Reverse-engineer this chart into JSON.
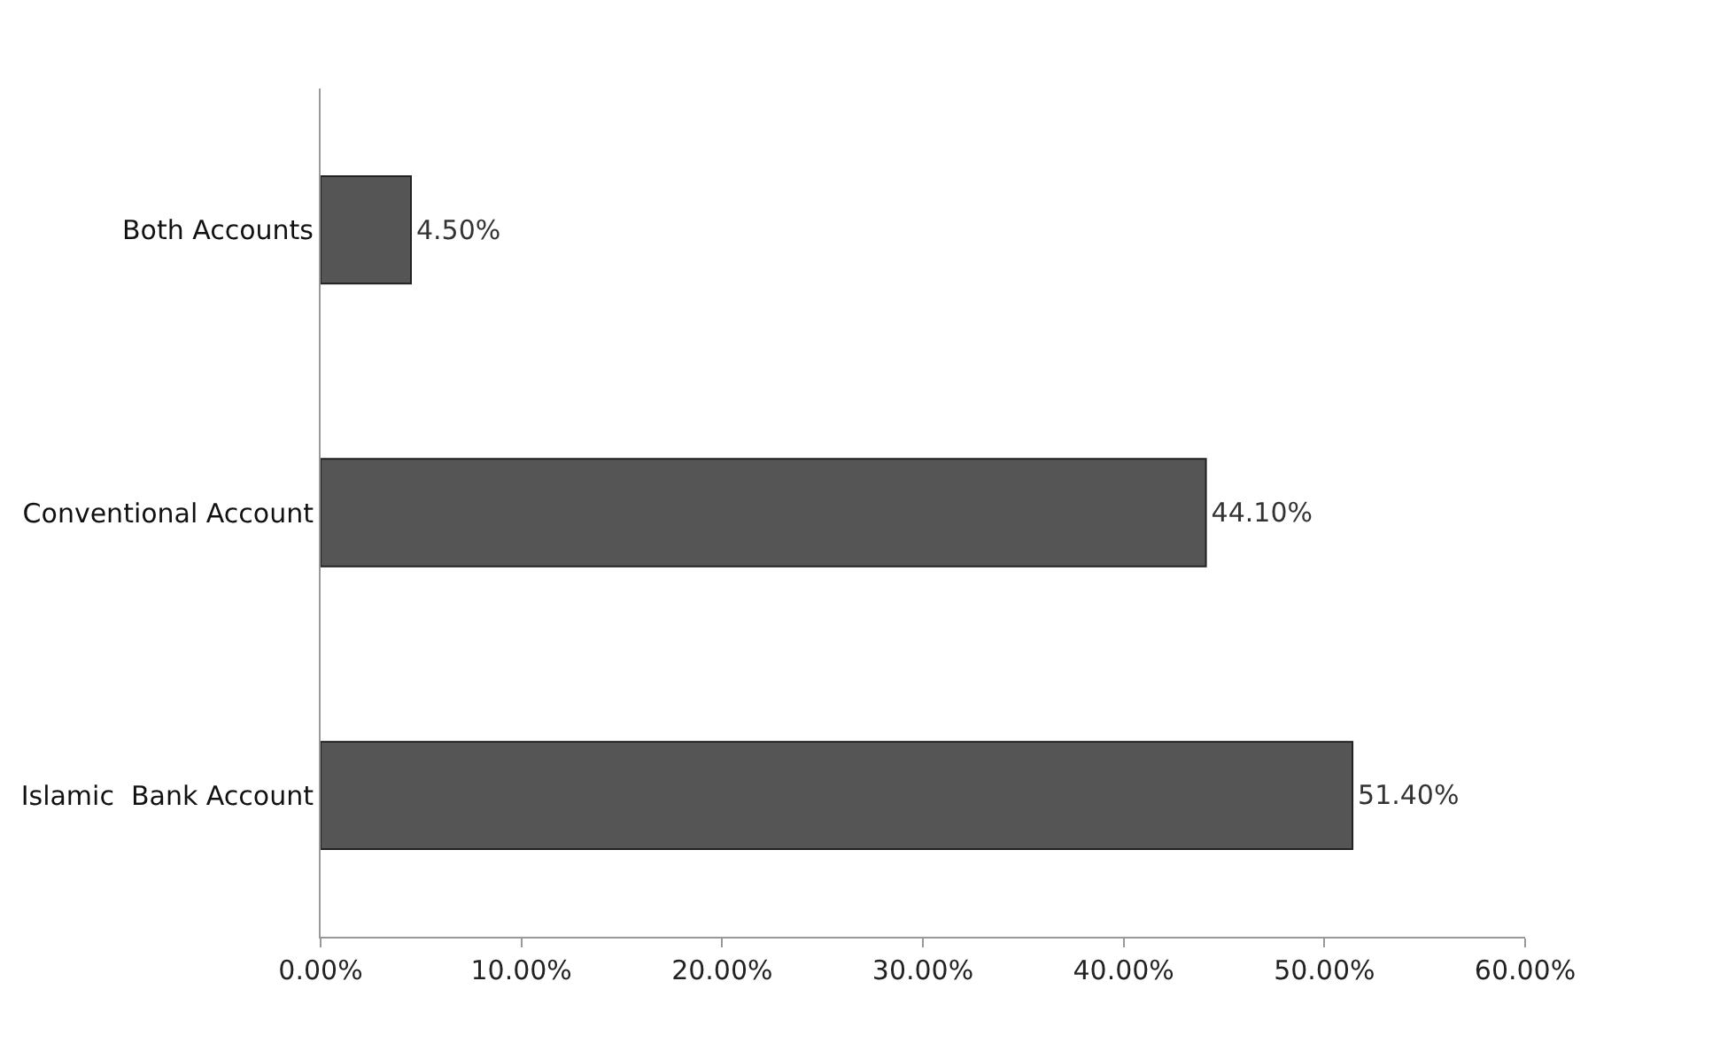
{
  "chart_data": {
    "type": "bar",
    "orientation": "horizontal",
    "categories": [
      "Both Accounts",
      "Conventional Account",
      "Islamic  Bank Account"
    ],
    "values": [
      4.5,
      44.1,
      51.4
    ],
    "value_labels": [
      "4.50%",
      "44.10%",
      "51.40%"
    ],
    "color": "#555555",
    "xlim": [
      0,
      60
    ],
    "xticks": [
      {
        "value": 0,
        "label": "0.00%"
      },
      {
        "value": 10,
        "label": "10.00%"
      },
      {
        "value": 20,
        "label": "20.00%"
      },
      {
        "value": 30,
        "label": "30.00%"
      },
      {
        "value": 40,
        "label": "40.00%"
      },
      {
        "value": 50,
        "label": "50.00%"
      },
      {
        "value": 60,
        "label": "60.00%"
      }
    ],
    "legend": false
  }
}
